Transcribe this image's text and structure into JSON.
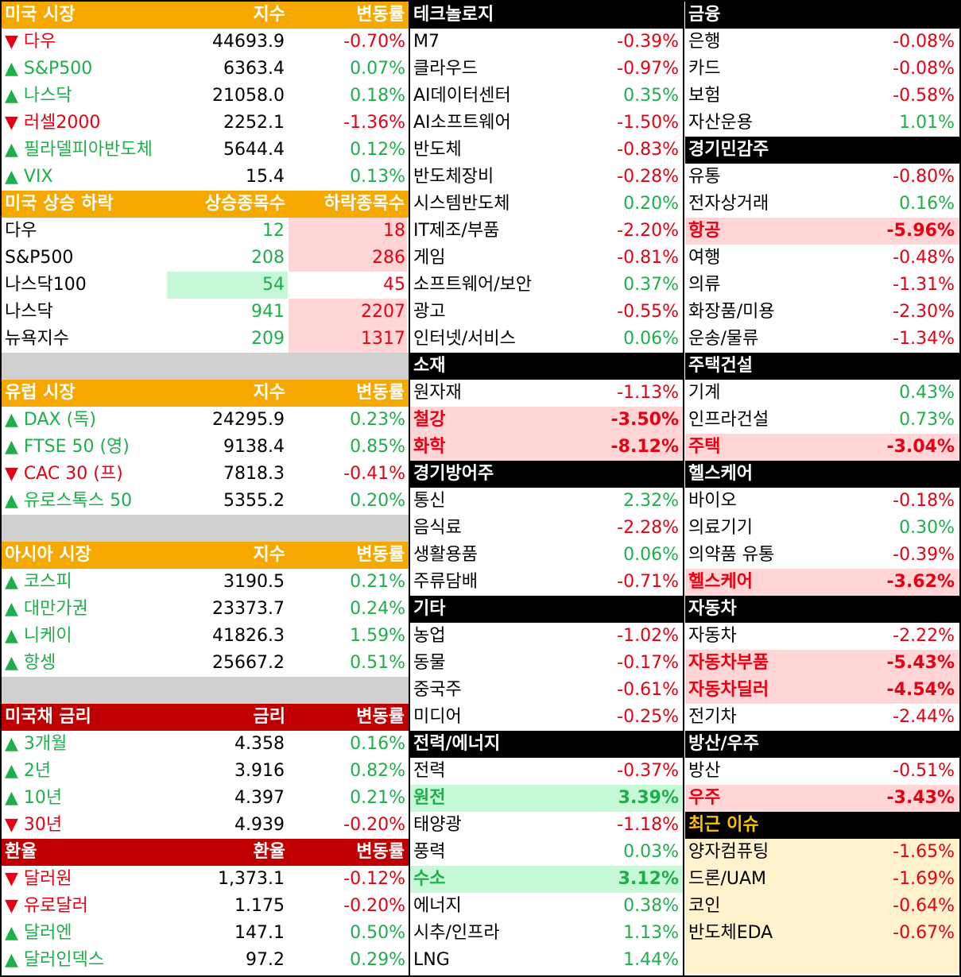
{
  "left": [
    {
      "title": "미국 시장",
      "cols": [
        "지수",
        "변동률"
      ],
      "header_color": "#f5a800",
      "rows": [
        {
          "name": "▼ 다우",
          "value": "44693.9",
          "change": "-0.70%"
        },
        {
          "name": "▲ S&P500",
          "value": "6363.4",
          "change": "0.07%"
        },
        {
          "name": "▲ 나스닥",
          "value": "21058.0",
          "change": "0.18%"
        },
        {
          "name": "▼ 러셀2000",
          "value": "2252.1",
          "change": "-1.36%"
        },
        {
          "name": "▲ 필라델피아반도체",
          "value": "5644.4",
          "change": "0.12%"
        },
        {
          "name": "▲ VIX",
          "value": "15.4",
          "change": "0.13%"
        }
      ]
    },
    {
      "title": "미국 상승 하락",
      "cols": [
        "상승종목수",
        "하락종목수"
      ],
      "header_color": "#f5a800",
      "value_color": "#1eaf4b",
      "change_color": "#e60012",
      "rows": [
        {
          "name": "다우",
          "value": "12",
          "change": "18",
          "change_bg": "#ffd5d5"
        },
        {
          "name": "S&P500",
          "value": "208",
          "change": "286",
          "change_bg": "#ffd5d5"
        },
        {
          "name": "나스닥100",
          "value": "54",
          "change": "45",
          "value_bg": "#c6f7d6"
        },
        {
          "name": "나스닥",
          "value": "941",
          "change": "2207",
          "change_bg": "#ffd5d5"
        },
        {
          "name": "뉴욕지수",
          "value": "209",
          "change": "1317",
          "change_bg": "#ffd5d5"
        }
      ]
    },
    {
      "title": "유럽 시장",
      "cols": [
        "지수",
        "변동률"
      ],
      "header_color": "#f5a800",
      "rows": [
        {
          "name": "▲ DAX (독)",
          "value": "24295.9",
          "change": "0.23%"
        },
        {
          "name": "▲ FTSE 50 (영)",
          "value": "9138.4",
          "change": "0.85%"
        },
        {
          "name": "▼ CAC 30 (프)",
          "value": "7818.3",
          "change": "-0.41%"
        },
        {
          "name": "▲ 유로스톡스 50",
          "value": "5355.2",
          "change": "0.20%"
        }
      ]
    },
    {
      "title": "아시아 시장",
      "cols": [
        "지수",
        "변동률"
      ],
      "header_color": "#f5a800",
      "rows": [
        {
          "name": "▲ 코스피",
          "value": "3190.5",
          "change": "0.21%"
        },
        {
          "name": "▲ 대만가권",
          "value": "23373.7",
          "change": "0.24%"
        },
        {
          "name": "▲ 니케이",
          "value": "41826.3",
          "change": "1.59%"
        },
        {
          "name": "▲ 항셍",
          "value": "25667.2",
          "change": "0.51%"
        }
      ]
    },
    {
      "title": "미국채 금리",
      "cols": [
        "금리",
        "변동률"
      ],
      "header_color": "#c00000",
      "rows": [
        {
          "name": "▲ 3개월",
          "value": "4.358",
          "change": "0.16%"
        },
        {
          "name": "▲ 2년",
          "value": "3.916",
          "change": "0.82%"
        },
        {
          "name": "▲ 10년",
          "value": "4.397",
          "change": "0.21%"
        },
        {
          "name": "▼ 30년",
          "value": "4.939",
          "change": "-0.20%"
        }
      ]
    },
    {
      "title": "환율",
      "cols": [
        "환율",
        "변동률"
      ],
      "header_color": "#c00000",
      "rows": [
        {
          "name": "▼ 달러원",
          "value": "1,373.1",
          "change": "-0.12%"
        },
        {
          "name": "▼ 유로달러",
          "value": "1.175",
          "change": "-0.20%"
        },
        {
          "name": "▲ 달러엔",
          "value": "147.1",
          "change": "0.50%"
        },
        {
          "name": "▲ 달러인덱스",
          "value": "97.2",
          "change": "0.29%"
        }
      ]
    }
  ],
  "middle": [
    {
      "title": "테크놀로지",
      "header_color": "#000000",
      "rows": [
        {
          "name": "M7",
          "change": "-0.39%"
        },
        {
          "name": "클라우드",
          "change": "-0.97%"
        },
        {
          "name": "AI데이터센터",
          "change": "0.35%"
        },
        {
          "name": "AI소프트웨어",
          "change": "-1.50%"
        },
        {
          "name": "반도체",
          "change": "-0.83%"
        },
        {
          "name": "반도체장비",
          "change": "-0.28%"
        },
        {
          "name": "시스템반도체",
          "change": "0.20%"
        },
        {
          "name": "IT제조/부품",
          "change": "-2.20%"
        },
        {
          "name": "게임",
          "change": "-0.81%"
        },
        {
          "name": "소프트웨어/보안",
          "change": "0.37%"
        },
        {
          "name": "광고",
          "change": "-0.55%"
        },
        {
          "name": "인터넷/서비스",
          "change": "0.06%"
        }
      ]
    },
    {
      "title": "소재",
      "header_color": "#000000",
      "rows": [
        {
          "name": "원자재",
          "change": "-1.13%"
        },
        {
          "name": "철강",
          "change": "-3.50%",
          "bg": "#ffd5d5"
        },
        {
          "name": "화학",
          "change": "-8.12%",
          "bg": "#ffd5d5"
        }
      ]
    },
    {
      "title": "경기방어주",
      "header_color": "#000000",
      "rows": [
        {
          "name": "통신",
          "change": "2.32%"
        },
        {
          "name": "음식료",
          "change": "-2.28%"
        },
        {
          "name": "생활용품",
          "change": "0.06%"
        },
        {
          "name": "주류담배",
          "change": "-0.71%"
        }
      ]
    },
    {
      "title": "기타",
      "header_color": "#000000",
      "rows": [
        {
          "name": "농업",
          "change": "-1.02%"
        },
        {
          "name": "동물",
          "change": "-0.17%"
        },
        {
          "name": "중국주",
          "change": "-0.61%"
        },
        {
          "name": "미디어",
          "change": "-0.25%"
        }
      ]
    },
    {
      "title": "전력/에너지",
      "header_color": "#000000",
      "rows": [
        {
          "name": "전력",
          "change": "-0.37%"
        },
        {
          "name": "원전",
          "change": "3.39%",
          "bg": "#c6f7d6"
        },
        {
          "name": "태양광",
          "change": "-1.18%"
        },
        {
          "name": "풍력",
          "change": "0.03%"
        },
        {
          "name": "수소",
          "change": "3.12%",
          "bg": "#c6f7d6"
        },
        {
          "name": "에너지",
          "change": "0.38%"
        },
        {
          "name": "시추/인프라",
          "change": "1.13%"
        },
        {
          "name": "LNG",
          "change": "1.44%"
        }
      ]
    }
  ],
  "right": [
    {
      "title": "금융",
      "header_color": "#000000",
      "rows": [
        {
          "name": "은행",
          "change": "-0.08%"
        },
        {
          "name": "카드",
          "change": "-0.08%"
        },
        {
          "name": "보험",
          "change": "-0.58%"
        },
        {
          "name": "자산운용",
          "change": "1.01%"
        }
      ]
    },
    {
      "title": "경기민감주",
      "header_color": "#000000",
      "rows": [
        {
          "name": "유통",
          "change": "-0.80%"
        },
        {
          "name": "전자상거래",
          "change": "0.16%"
        },
        {
          "name": "항공",
          "change": "-5.96%",
          "bg": "#ffd5d5"
        },
        {
          "name": "여행",
          "change": "-0.48%"
        },
        {
          "name": "의류",
          "change": "-1.31%"
        },
        {
          "name": "화장품/미용",
          "change": "-2.30%"
        },
        {
          "name": "운송/물류",
          "change": "-1.34%"
        }
      ]
    },
    {
      "title": "주택건설",
      "header_color": "#000000",
      "rows": [
        {
          "name": "기계",
          "change": "0.43%"
        },
        {
          "name": "인프라건설",
          "change": "0.73%"
        },
        {
          "name": "주택",
          "change": "-3.04%",
          "bg": "#ffd5d5"
        }
      ]
    },
    {
      "title": "헬스케어",
      "header_color": "#000000",
      "rows": [
        {
          "name": "바이오",
          "change": "-0.18%"
        },
        {
          "name": "의료기기",
          "change": "0.30%"
        },
        {
          "name": "의약품 유통",
          "change": "-0.39%"
        },
        {
          "name": "헬스케어",
          "change": "-3.62%",
          "bg": "#ffd5d5"
        }
      ]
    },
    {
      "title": "자동차",
      "header_color": "#000000",
      "rows": [
        {
          "name": "자동차",
          "change": "-2.22%"
        },
        {
          "name": "자동차부품",
          "change": "-5.43%",
          "bg": "#ffd5d5"
        },
        {
          "name": "자동차딜러",
          "change": "-4.54%",
          "bg": "#ffd5d5"
        },
        {
          "name": "전기차",
          "change": "-2.44%"
        }
      ]
    },
    {
      "title": "방산/우주",
      "header_color": "#000000",
      "rows": [
        {
          "name": "방산",
          "change": "-0.51%"
        },
        {
          "name": "우주",
          "change": "-3.43%",
          "bg": "#ffd5d5"
        }
      ]
    },
    {
      "title": "최근 이슈",
      "header_color": "#000000",
      "title_color": "#ffc000",
      "row_bg": "#fff2cc",
      "rows": [
        {
          "name": "양자컴퓨팅",
          "change": "-1.65%"
        },
        {
          "name": "드론/UAM",
          "change": "-1.69%"
        },
        {
          "name": "코인",
          "change": "-0.64%"
        },
        {
          "name": "반도체EDA",
          "change": "-0.67%"
        }
      ]
    }
  ]
}
